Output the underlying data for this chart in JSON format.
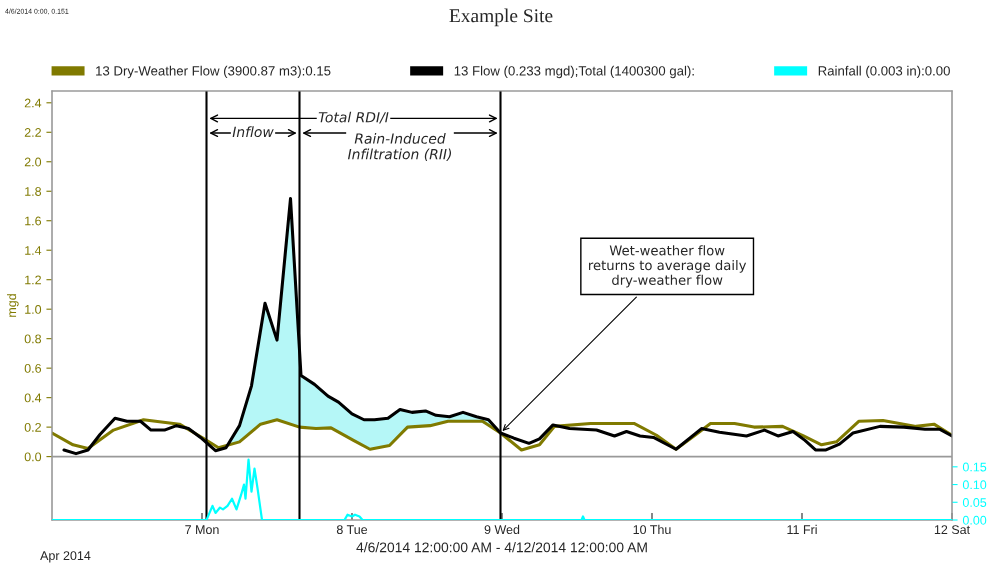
{
  "chart_data": {
    "type": "line",
    "title": "Example Site",
    "ylabel": "mgd",
    "xlabel": "4/6/2014 12:00:00 AM - 4/12/2014 12:00:00 AM",
    "xlim": [
      6,
      12
    ],
    "xticks": [
      {
        "value": 7,
        "label": "7 Mon"
      },
      {
        "value": 8,
        "label": "8 Tue"
      },
      {
        "value": 9,
        "label": "9 Wed"
      },
      {
        "value": 10,
        "label": "10 Thu"
      },
      {
        "value": 11,
        "label": "11 Fri"
      },
      {
        "value": 12,
        "label": "12 Sat"
      }
    ],
    "ylim": [
      -0.43,
      2.48
    ],
    "yticks": [
      {
        "value": 0,
        "label": "0.0"
      },
      0.2,
      0.4,
      0.6,
      0.8,
      {
        "value": 1.0,
        "label": "1.0"
      },
      1.2,
      1.4,
      1.6,
      1.8,
      {
        "value": 2.0,
        "label": "2.0"
      },
      2.2,
      2.4
    ],
    "y2lim": [
      0,
      1.21
    ],
    "y2ticks": [
      {
        "value": 0,
        "label": "0.00"
      },
      {
        "value": 0.05,
        "label": "0.05"
      },
      {
        "value": 0.1,
        "label": "0.10"
      },
      {
        "value": 0.15,
        "label": "0.15"
      }
    ],
    "series": [
      {
        "type": "area",
        "color": "#b5f7f7",
        "x": [
          7.16,
          7.25,
          7.33,
          7.42,
          7.5,
          7.59,
          7.66,
          7.75,
          7.84,
          7.91,
          8.0,
          8.08,
          8.15,
          8.24,
          8.32,
          8.4,
          8.49,
          8.56,
          8.65,
          8.74,
          8.83,
          8.91,
          8.99
        ],
        "values": [
          0.06,
          0.21,
          0.48,
          1.04,
          0.79,
          1.75,
          0.55,
          0.49,
          0.41,
          0.37,
          0.29,
          0.25,
          0.25,
          0.26,
          0.32,
          0.3,
          0.31,
          0.28,
          0.27,
          0.3,
          0.27,
          0.25,
          0.16
        ]
      },
      {
        "name": "13 Dry-Weather Flow (3900.87 m3):0.15",
        "color": "#807a00",
        "x": [
          6.0,
          6.14,
          6.24,
          6.41,
          6.61,
          6.85,
          7.0,
          7.11,
          7.25,
          7.39,
          7.5,
          7.65,
          7.76,
          7.86,
          8.01,
          8.12,
          8.25,
          8.37,
          8.52,
          8.64,
          8.87,
          8.99,
          9.13,
          9.25,
          9.35,
          9.59,
          9.88,
          10.03,
          10.16,
          10.28,
          10.39,
          10.55,
          10.68,
          10.87,
          11.01,
          11.13,
          11.23,
          11.38,
          11.54,
          11.65,
          11.76,
          11.88,
          12.0
        ],
        "values": [
          0.16,
          0.08,
          0.055,
          0.18,
          0.25,
          0.22,
          0.13,
          0.06,
          0.1,
          0.22,
          0.25,
          0.2,
          0.19,
          0.195,
          0.11,
          0.05,
          0.075,
          0.2,
          0.21,
          0.24,
          0.24,
          0.16,
          0.045,
          0.08,
          0.205,
          0.225,
          0.225,
          0.145,
          0.05,
          0.14,
          0.225,
          0.225,
          0.2,
          0.205,
          0.14,
          0.08,
          0.1,
          0.24,
          0.245,
          0.225,
          0.205,
          0.22,
          0.145
        ]
      },
      {
        "name": "13 Flow (0.233 mgd);Total (1400300 gal):",
        "color": "#000000",
        "x": [
          6.08,
          6.16,
          6.24,
          6.32,
          6.42,
          6.5,
          6.59,
          6.66,
          6.75,
          6.83,
          6.91,
          6.99,
          7.09,
          7.16,
          7.25,
          7.33,
          7.42,
          7.5,
          7.59,
          7.66,
          7.75,
          7.84,
          7.91,
          8.0,
          8.08,
          8.15,
          8.24,
          8.32,
          8.4,
          8.49,
          8.56,
          8.65,
          8.74,
          8.83,
          8.91,
          8.99,
          9.08,
          9.18,
          9.25,
          9.34,
          9.45,
          9.63,
          9.75,
          9.83,
          9.92,
          10.01,
          10.16,
          10.33,
          10.45,
          10.63,
          10.75,
          10.84,
          10.94,
          11.02,
          11.09,
          11.16,
          11.25,
          11.34,
          11.52,
          11.68,
          11.82,
          11.92,
          12.0
        ],
        "values": [
          0.045,
          0.02,
          0.045,
          0.15,
          0.26,
          0.24,
          0.24,
          0.18,
          0.18,
          0.21,
          0.19,
          0.13,
          0.04,
          0.06,
          0.21,
          0.48,
          1.04,
          0.79,
          1.75,
          0.55,
          0.49,
          0.41,
          0.37,
          0.29,
          0.25,
          0.25,
          0.26,
          0.32,
          0.3,
          0.31,
          0.28,
          0.27,
          0.3,
          0.27,
          0.25,
          0.16,
          0.125,
          0.09,
          0.12,
          0.215,
          0.19,
          0.18,
          0.14,
          0.17,
          0.14,
          0.13,
          0.05,
          0.19,
          0.165,
          0.14,
          0.18,
          0.14,
          0.17,
          0.11,
          0.045,
          0.045,
          0.085,
          0.16,
          0.205,
          0.2,
          0.185,
          0.185,
          0.14
        ]
      },
      {
        "name": "Rainfall (0.003 in):0.00",
        "color": "#00ffff",
        "axis": "y2",
        "x": [
          6.0,
          7.01,
          7.03,
          7.05,
          7.07,
          7.09,
          7.12,
          7.14,
          7.17,
          7.2,
          7.23,
          7.26,
          7.28,
          7.29,
          7.31,
          7.33,
          7.35,
          7.37,
          7.39,
          7.4,
          7.95,
          7.97,
          8.0,
          8.02,
          8.05,
          8.07,
          9.53,
          9.54,
          9.55,
          12.0
        ],
        "values": [
          0,
          0,
          0,
          0.02,
          0.04,
          0.02,
          0.035,
          0.03,
          0.04,
          0.06,
          0.03,
          0.07,
          0.1,
          0.06,
          0.17,
          0.08,
          0.145,
          0.09,
          0.03,
          0,
          0,
          0.015,
          0.01,
          0.015,
          0.01,
          0,
          0,
          0.01,
          0,
          0
        ]
      }
    ],
    "ref_lines": [
      {
        "axis": "y",
        "value": 0,
        "color": "#999999"
      },
      {
        "axis": "x",
        "value": 7.03,
        "color": "#000000"
      },
      {
        "axis": "x",
        "value": 7.65,
        "color": "#000000"
      },
      {
        "axis": "x",
        "value": 8.99,
        "color": "#000000"
      }
    ],
    "annotations": [
      "4/6/2014 0:00, 0.151",
      "Apr 2014",
      "Total RDI/I",
      "Inflow",
      "Rain-Induced\nInfiltration (RII)",
      {
        "text": "Wet-weather flow\nreturns to average daily\ndry-weather flow",
        "x": 8.99,
        "y": 0.16
      }
    ],
    "legend": "top",
    "grid": false
  }
}
